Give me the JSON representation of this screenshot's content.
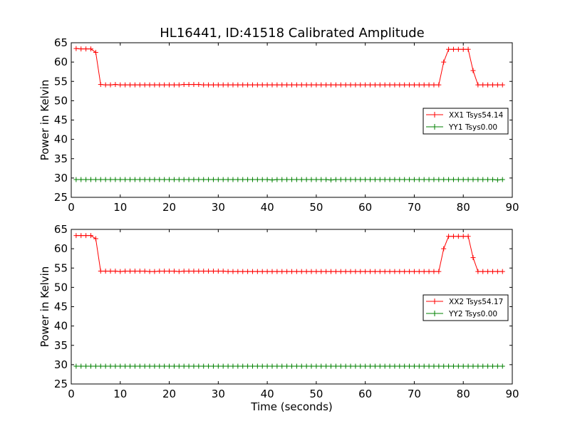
{
  "chart_title": "HL16441, ID:41518 Calibrated Amplitude",
  "chart_data": [
    {
      "type": "line",
      "title": "HL16441, ID:41518 Calibrated Amplitude",
      "xlabel": "",
      "ylabel": "Power in Kelvin",
      "xlim": [
        0,
        90
      ],
      "ylim": [
        25,
        65
      ],
      "xticks": [
        "0",
        "10",
        "20",
        "30",
        "40",
        "50",
        "60",
        "70",
        "80",
        "90"
      ],
      "yticks": [
        "25",
        "30",
        "35",
        "40",
        "45",
        "50",
        "55",
        "60",
        "65"
      ],
      "legend_position": "center-right",
      "grid": false,
      "series": [
        {
          "name": "XX1 Tsys54.14",
          "color": "#ff0000",
          "marker": "plus",
          "x": [
            1,
            2,
            3,
            4,
            5,
            6,
            7,
            8,
            9,
            10,
            11,
            12,
            13,
            14,
            15,
            16,
            17,
            18,
            19,
            20,
            21,
            22,
            23,
            24,
            25,
            26,
            27,
            28,
            29,
            30,
            31,
            32,
            33,
            34,
            35,
            36,
            37,
            38,
            39,
            40,
            41,
            42,
            43,
            44,
            45,
            46,
            47,
            48,
            49,
            50,
            51,
            52,
            53,
            54,
            55,
            56,
            57,
            58,
            59,
            60,
            61,
            62,
            63,
            64,
            65,
            66,
            67,
            68,
            69,
            70,
            71,
            72,
            73,
            74,
            75,
            76,
            77,
            78,
            79,
            80,
            81,
            82,
            83,
            84,
            85,
            86,
            87,
            88
          ],
          "values": [
            63.5,
            63.4,
            63.4,
            63.4,
            62.5,
            54.2,
            54.1,
            54.1,
            54.2,
            54.1,
            54.1,
            54.1,
            54.1,
            54.1,
            54.1,
            54.1,
            54.1,
            54.1,
            54.1,
            54.1,
            54.1,
            54.1,
            54.2,
            54.2,
            54.2,
            54.2,
            54.1,
            54.1,
            54.1,
            54.1,
            54.1,
            54.1,
            54.1,
            54.1,
            54.1,
            54.1,
            54.1,
            54.1,
            54.1,
            54.1,
            54.1,
            54.1,
            54.1,
            54.1,
            54.1,
            54.1,
            54.1,
            54.1,
            54.1,
            54.1,
            54.1,
            54.1,
            54.1,
            54.1,
            54.1,
            54.1,
            54.1,
            54.1,
            54.1,
            54.1,
            54.1,
            54.1,
            54.1,
            54.1,
            54.1,
            54.1,
            54.1,
            54.1,
            54.1,
            54.1,
            54.1,
            54.1,
            54.1,
            54.1,
            54.1,
            60.0,
            63.3,
            63.3,
            63.3,
            63.3,
            63.3,
            57.8,
            54.1,
            54.1,
            54.1,
            54.1,
            54.1,
            54.1
          ]
        },
        {
          "name": "YY1 Tsys0.00",
          "color": "#008000",
          "marker": "plus",
          "x": [
            1,
            2,
            3,
            4,
            5,
            6,
            7,
            8,
            9,
            10,
            11,
            12,
            13,
            14,
            15,
            16,
            17,
            18,
            19,
            20,
            21,
            22,
            23,
            24,
            25,
            26,
            27,
            28,
            29,
            30,
            31,
            32,
            33,
            34,
            35,
            36,
            37,
            38,
            39,
            40,
            41,
            42,
            43,
            44,
            45,
            46,
            47,
            48,
            49,
            50,
            51,
            52,
            53,
            54,
            55,
            56,
            57,
            58,
            59,
            60,
            61,
            62,
            63,
            64,
            65,
            66,
            67,
            68,
            69,
            70,
            71,
            72,
            73,
            74,
            75,
            76,
            77,
            78,
            79,
            80,
            81,
            82,
            83,
            84,
            85,
            86,
            87,
            88
          ],
          "values": [
            29.6,
            29.6,
            29.6,
            29.6,
            29.6,
            29.6,
            29.6,
            29.6,
            29.6,
            29.6,
            29.6,
            29.6,
            29.6,
            29.6,
            29.6,
            29.6,
            29.6,
            29.6,
            29.6,
            29.6,
            29.6,
            29.6,
            29.6,
            29.6,
            29.6,
            29.6,
            29.6,
            29.6,
            29.6,
            29.6,
            29.6,
            29.6,
            29.6,
            29.6,
            29.6,
            29.6,
            29.6,
            29.6,
            29.6,
            29.6,
            29.5,
            29.6,
            29.6,
            29.6,
            29.6,
            29.6,
            29.6,
            29.6,
            29.6,
            29.6,
            29.6,
            29.6,
            29.5,
            29.6,
            29.6,
            29.6,
            29.6,
            29.6,
            29.6,
            29.6,
            29.6,
            29.6,
            29.6,
            29.6,
            29.6,
            29.6,
            29.6,
            29.6,
            29.6,
            29.6,
            29.6,
            29.6,
            29.6,
            29.6,
            29.6,
            29.6,
            29.6,
            29.6,
            29.6,
            29.6,
            29.6,
            29.6,
            29.6,
            29.6,
            29.6,
            29.6,
            29.5,
            29.6
          ]
        }
      ]
    },
    {
      "type": "line",
      "title": "",
      "xlabel": "Time (seconds)",
      "ylabel": "Power in Kelvin",
      "xlim": [
        0,
        90
      ],
      "ylim": [
        25,
        65
      ],
      "xticks": [
        "0",
        "10",
        "20",
        "30",
        "40",
        "50",
        "60",
        "70",
        "80",
        "90"
      ],
      "yticks": [
        "25",
        "30",
        "35",
        "40",
        "45",
        "50",
        "55",
        "60",
        "65"
      ],
      "legend_position": "center-right",
      "grid": false,
      "series": [
        {
          "name": "XX2 Tsys54.17",
          "color": "#ff0000",
          "marker": "plus",
          "x": [
            1,
            2,
            3,
            4,
            5,
            6,
            7,
            8,
            9,
            10,
            11,
            12,
            13,
            14,
            15,
            16,
            17,
            18,
            19,
            20,
            21,
            22,
            23,
            24,
            25,
            26,
            27,
            28,
            29,
            30,
            31,
            32,
            33,
            34,
            35,
            36,
            37,
            38,
            39,
            40,
            41,
            42,
            43,
            44,
            45,
            46,
            47,
            48,
            49,
            50,
            51,
            52,
            53,
            54,
            55,
            56,
            57,
            58,
            59,
            60,
            61,
            62,
            63,
            64,
            65,
            66,
            67,
            68,
            69,
            70,
            71,
            72,
            73,
            74,
            75,
            76,
            77,
            78,
            79,
            80,
            81,
            82,
            83,
            84,
            85,
            86,
            87,
            88
          ],
          "values": [
            63.4,
            63.4,
            63.4,
            63.4,
            62.6,
            54.2,
            54.2,
            54.2,
            54.2,
            54.1,
            54.2,
            54.2,
            54.2,
            54.2,
            54.2,
            54.1,
            54.1,
            54.2,
            54.2,
            54.2,
            54.2,
            54.1,
            54.2,
            54.2,
            54.2,
            54.2,
            54.2,
            54.2,
            54.2,
            54.2,
            54.2,
            54.1,
            54.1,
            54.1,
            54.1,
            54.1,
            54.1,
            54.1,
            54.1,
            54.1,
            54.1,
            54.1,
            54.1,
            54.1,
            54.1,
            54.1,
            54.1,
            54.1,
            54.1,
            54.1,
            54.1,
            54.1,
            54.1,
            54.1,
            54.1,
            54.1,
            54.1,
            54.1,
            54.1,
            54.1,
            54.1,
            54.1,
            54.1,
            54.1,
            54.1,
            54.1,
            54.1,
            54.1,
            54.1,
            54.1,
            54.1,
            54.1,
            54.1,
            54.1,
            54.1,
            60.0,
            63.2,
            63.2,
            63.2,
            63.2,
            63.2,
            57.7,
            54.1,
            54.1,
            54.1,
            54.1,
            54.1,
            54.1
          ]
        },
        {
          "name": "YY2 Tsys0.00",
          "color": "#008000",
          "marker": "plus",
          "x": [
            1,
            2,
            3,
            4,
            5,
            6,
            7,
            8,
            9,
            10,
            11,
            12,
            13,
            14,
            15,
            16,
            17,
            18,
            19,
            20,
            21,
            22,
            23,
            24,
            25,
            26,
            27,
            28,
            29,
            30,
            31,
            32,
            33,
            34,
            35,
            36,
            37,
            38,
            39,
            40,
            41,
            42,
            43,
            44,
            45,
            46,
            47,
            48,
            49,
            50,
            51,
            52,
            53,
            54,
            55,
            56,
            57,
            58,
            59,
            60,
            61,
            62,
            63,
            64,
            65,
            66,
            67,
            68,
            69,
            70,
            71,
            72,
            73,
            74,
            75,
            76,
            77,
            78,
            79,
            80,
            81,
            82,
            83,
            84,
            85,
            86,
            87,
            88
          ],
          "values": [
            29.6,
            29.6,
            29.6,
            29.6,
            29.6,
            29.6,
            29.6,
            29.6,
            29.6,
            29.6,
            29.6,
            29.6,
            29.6,
            29.6,
            29.6,
            29.6,
            29.6,
            29.6,
            29.6,
            29.6,
            29.6,
            29.6,
            29.6,
            29.6,
            29.6,
            29.6,
            29.6,
            29.6,
            29.6,
            29.6,
            29.6,
            29.6,
            29.6,
            29.6,
            29.6,
            29.6,
            29.6,
            29.6,
            29.6,
            29.6,
            29.6,
            29.6,
            29.6,
            29.6,
            29.6,
            29.6,
            29.6,
            29.6,
            29.6,
            29.6,
            29.6,
            29.6,
            29.6,
            29.6,
            29.6,
            29.6,
            29.6,
            29.6,
            29.6,
            29.6,
            29.6,
            29.6,
            29.6,
            29.6,
            29.6,
            29.6,
            29.6,
            29.6,
            29.6,
            29.6,
            29.6,
            29.6,
            29.6,
            29.6,
            29.6,
            29.6,
            29.6,
            29.6,
            29.6,
            29.6,
            29.6,
            29.6,
            29.6,
            29.6,
            29.6,
            29.6,
            29.6,
            29.6
          ]
        }
      ]
    }
  ]
}
